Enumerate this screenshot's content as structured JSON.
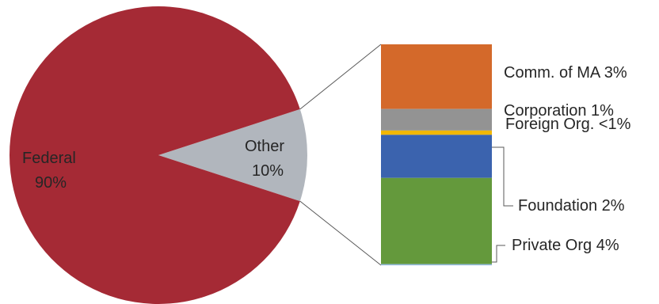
{
  "chart_data": [
    {
      "type": "pie",
      "slices": [
        {
          "name": "Federal",
          "value": 90,
          "value_label": "90%",
          "color": "#A52A35"
        },
        {
          "name": "Other",
          "value": 10,
          "value_label": "10%",
          "color": "#B1B6BD"
        }
      ],
      "exploded_slice": "Other"
    },
    {
      "type": "bar",
      "stacked": true,
      "description": "breakdown of Other (stacked single column, top to bottom)",
      "segments": [
        {
          "name": "Comm. of MA",
          "value": 3,
          "label": "Comm. of MA 3%",
          "color": "#D4692A"
        },
        {
          "name": "Corporation",
          "value": 1,
          "label": "Corporation 1%",
          "color": "#939393"
        },
        {
          "name": "Foreign Org.",
          "value": 0.2,
          "label": "Foreign Org. <1%",
          "color": "#F2B705"
        },
        {
          "name": "Foundation",
          "value": 2,
          "label": "Foundation 2%",
          "color": "#3B63AE"
        },
        {
          "name": "Private Org",
          "value": 4,
          "label": "Private Org 4%",
          "color": "#64993C"
        },
        {
          "name": "",
          "value": 0.05,
          "label": "",
          "color": "#8FB7DE"
        }
      ]
    }
  ]
}
